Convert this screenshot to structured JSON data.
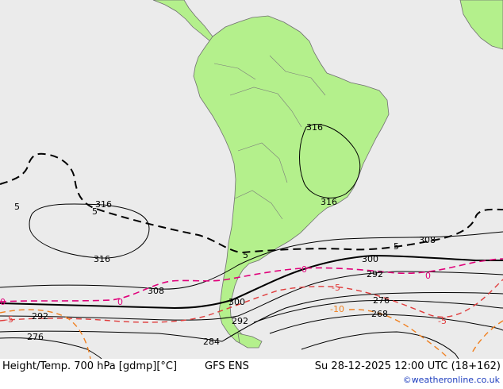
{
  "map": {
    "parameter_label": "Height/Temp. 700 hPa [gdmp][°C]",
    "model": "GFS ENS",
    "valid_time": "Su 28-12-2025 12:00 UTC (18+162)",
    "credit": "©weatheronline.co.uk",
    "colors": {
      "ocean": "#ebebeb",
      "land": "#b4f08c",
      "coast": "#707070",
      "height_contour": "#000000",
      "temp_zero": "#e0007a",
      "temp_negative": "#e03c3c",
      "temp_cold": "#f08020",
      "credit_link": "#1f3fbf"
    },
    "height_labels": {
      "h316_a": "316",
      "h316_b": "316",
      "h316_c": "316",
      "h316_d": "316",
      "h308_a": "308",
      "h308_b": "308",
      "h300_a": "300",
      "h300_b": "300",
      "h292_a": "292",
      "h292_b": "292",
      "h292_c": "292",
      "h284": "284",
      "h276_a": "276",
      "h276_b": "276",
      "h268": "268"
    },
    "temp_labels": {
      "t5_a": "5",
      "t5_b": "5",
      "t5_c": "5",
      "t5_d": "5",
      "t0_a": "0",
      "t0_b": "0",
      "t0_c": "0",
      "t0_d": "0",
      "tm5_a": "-5",
      "tm5_b": "-5",
      "tm5_c": "-5",
      "tm10": "-10"
    }
  }
}
